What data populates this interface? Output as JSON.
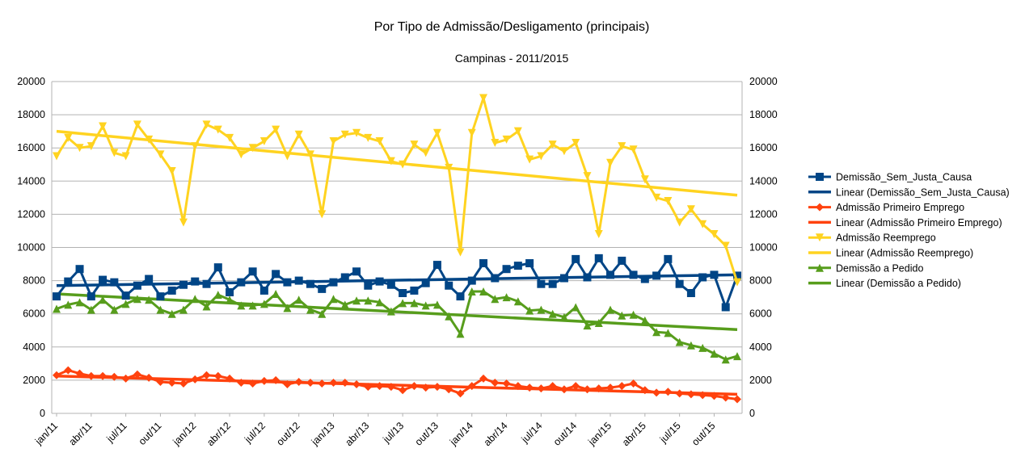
{
  "chart_data": {
    "type": "line",
    "title": "Por Tipo de Admissão/Desligamento (principais)",
    "subtitle": "Campinas - 2011/2015",
    "xlabel": "",
    "ylabel": "",
    "ylim": [
      0,
      20000
    ],
    "y_ticks": [
      "0",
      "2000",
      "4000",
      "6000",
      "8000",
      "10000",
      "12000",
      "14000",
      "16000",
      "18000",
      "20000"
    ],
    "y2_ticks": [
      "0",
      "2000",
      "4000",
      "6000",
      "8000",
      "10000",
      "12000",
      "14000",
      "16000",
      "18000",
      "20000"
    ],
    "x_tick_labels": [
      "jan/11",
      "abr/11",
      "jul/11",
      "out/11",
      "jan/12",
      "abr/12",
      "jul/12",
      "out/12",
      "jan/13",
      "abr/13",
      "jul/13",
      "out/13",
      "jan/14",
      "abr/14",
      "jul/14",
      "out/14",
      "jan/15",
      "abr/15",
      "jul/15",
      "out/15"
    ],
    "grid": true,
    "legend_position": "right",
    "series": [
      {
        "name": "Demissão_Sem_Justa_Causa",
        "color": "#004586",
        "marker": "square",
        "values": [
          7050,
          7950,
          8700,
          7050,
          8050,
          7900,
          7100,
          7700,
          8100,
          7050,
          7400,
          7750,
          7950,
          7800,
          8800,
          7300,
          7900,
          8550,
          7400,
          8400,
          7900,
          8000,
          7800,
          7500,
          7900,
          8200,
          8550,
          7700,
          7950,
          7750,
          7250,
          7400,
          7850,
          8950,
          7700,
          7050,
          8000,
          9050,
          8150,
          8700,
          8900,
          9050,
          7800,
          7800,
          8150,
          9300,
          8200,
          9350,
          8350,
          9200,
          8350,
          8100,
          8300,
          9300,
          7800,
          7250,
          8200,
          8350,
          6400,
          8300
        ]
      },
      {
        "name": "Linear (Demissão_Sem_Justa_Causa)",
        "color": "#004586",
        "trend": true,
        "values": [
          7700,
          8350
        ]
      },
      {
        "name": "Admissão Primeiro Emprego",
        "color": "#ff420e",
        "marker": "diamond",
        "values": [
          2300,
          2600,
          2400,
          2250,
          2250,
          2200,
          2100,
          2350,
          2150,
          1900,
          1850,
          1800,
          2050,
          2300,
          2250,
          2100,
          1850,
          1800,
          1950,
          2000,
          1750,
          1900,
          1850,
          1800,
          1850,
          1850,
          1750,
          1600,
          1650,
          1600,
          1400,
          1650,
          1550,
          1600,
          1450,
          1200,
          1650,
          2100,
          1850,
          1800,
          1650,
          1550,
          1500,
          1650,
          1450,
          1650,
          1450,
          1500,
          1550,
          1650,
          1800,
          1400,
          1250,
          1300,
          1200,
          1150,
          1100,
          1050,
          950,
          850
        ]
      },
      {
        "name": "Linear (Admissão Primeiro Emprego)",
        "color": "#ff420e",
        "trend": true,
        "values": [
          2250,
          1150
        ]
      },
      {
        "name": "Admissão Reemprego",
        "color": "#ffd320",
        "marker": "triangle-down",
        "values": [
          15500,
          16600,
          16000,
          16100,
          17300,
          15700,
          15500,
          17400,
          16500,
          15600,
          14600,
          11500,
          16100,
          17400,
          17100,
          16600,
          15600,
          16000,
          16400,
          17100,
          15500,
          16800,
          15600,
          12000,
          16400,
          16800,
          16900,
          16600,
          16400,
          15200,
          15000,
          16200,
          15700,
          16900,
          14800,
          9700,
          16900,
          19000,
          16300,
          16500,
          17000,
          15300,
          15500,
          16200,
          15800,
          16300,
          14300,
          10800,
          15100,
          16100,
          15900,
          14100,
          13000,
          12800,
          11500,
          12300,
          11400,
          10800,
          10100,
          7900
        ]
      },
      {
        "name": "Linear (Admissão Reemprego)",
        "color": "#ffd320",
        "trend": true,
        "values": [
          17000,
          13150
        ]
      },
      {
        "name": "Demissão a Pedido",
        "color": "#579d1c",
        "marker": "triangle-up",
        "values": [
          6300,
          6550,
          6700,
          6250,
          6850,
          6250,
          6600,
          6900,
          6850,
          6250,
          6000,
          6250,
          6900,
          6450,
          7150,
          6850,
          6500,
          6500,
          6600,
          7200,
          6350,
          6850,
          6250,
          6000,
          6900,
          6550,
          6800,
          6800,
          6700,
          6150,
          6650,
          6650,
          6500,
          6550,
          5850,
          4800,
          7350,
          7350,
          6900,
          7000,
          6750,
          6200,
          6250,
          6000,
          5800,
          6400,
          5300,
          5450,
          6250,
          5900,
          5950,
          5600,
          4900,
          4850,
          4300,
          4100,
          3950,
          3600,
          3250,
          3450
        ]
      },
      {
        "name": "Linear (Demissão a Pedido)",
        "color": "#579d1c",
        "trend": true,
        "values": [
          7200,
          5050
        ]
      }
    ]
  }
}
